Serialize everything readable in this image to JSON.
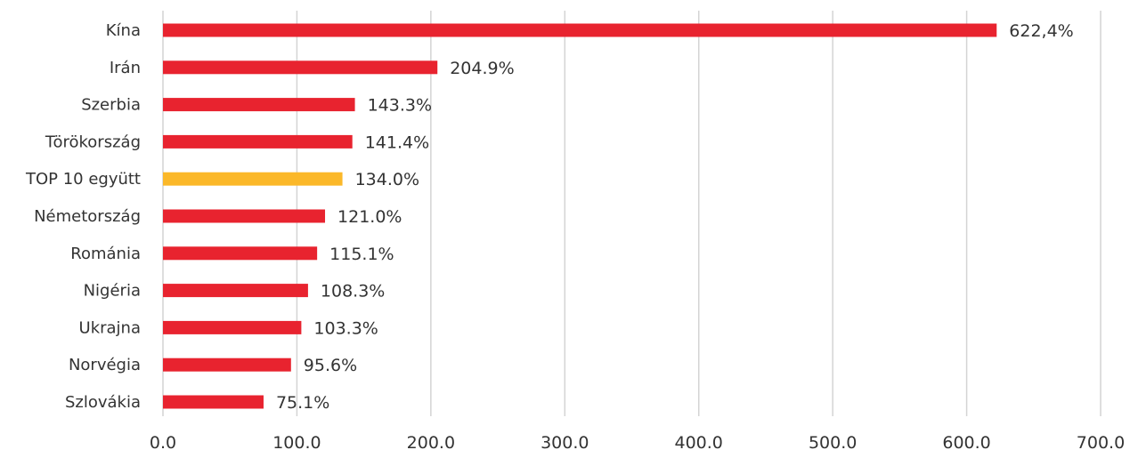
{
  "chart_data": {
    "type": "bar",
    "orientation": "horizontal",
    "title": "",
    "xlabel": "",
    "ylabel": "",
    "xlim": [
      0,
      700
    ],
    "grid": true,
    "legend": "none",
    "categories": [
      "Kína",
      "Irán",
      "Szerbia",
      "Törökország",
      "TOP 10 együtt",
      "Németország",
      "Románia",
      "Nigéria",
      "Ukrajna",
      "Norvégia",
      "Szlovákia"
    ],
    "values": [
      622.4,
      204.9,
      143.3,
      141.4,
      134.0,
      121.0,
      115.1,
      108.3,
      103.3,
      95.6,
      75.1
    ],
    "value_labels": [
      "622,4%",
      "204.9%",
      "143.3%",
      "141.4%",
      "134.0%",
      "121.0%",
      "115.1%",
      "108.3%",
      "103.3%",
      "95.6%",
      "75.1%"
    ],
    "highlight_index": 4,
    "x_ticks": [
      "0.0",
      "100.0",
      "200.0",
      "300.0",
      "400.0",
      "500.0",
      "600.0",
      "700.0"
    ],
    "x_tick_values": [
      0,
      100,
      200,
      300,
      400,
      500,
      600,
      700
    ],
    "colors": {
      "bar": "#e8232f",
      "highlight": "#fbb829",
      "grid": "#d4d4d4",
      "text": "#333333"
    }
  }
}
